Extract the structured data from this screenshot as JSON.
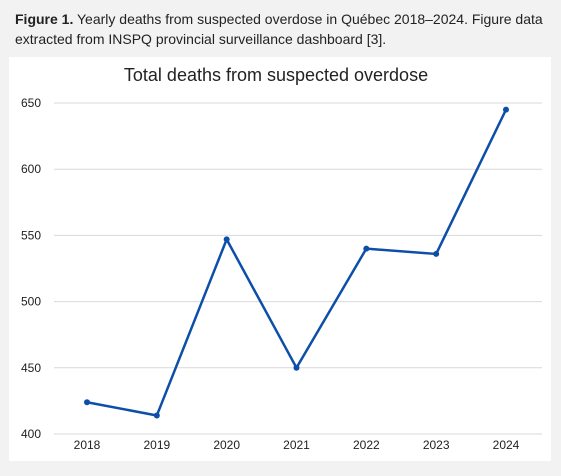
{
  "figure": {
    "label": "Figure 1.",
    "text": " Yearly deaths from suspected overdose in Québec 2018–2024. Figure data extracted from INSPQ provincial surveillance dashboard [3]."
  },
  "colors": {
    "line": "#0d4fa8",
    "grid": "#d9d9d9",
    "background": "#ffffff",
    "page": "#f2f2f2"
  },
  "chart_data": {
    "type": "line",
    "title": "Total deaths from suspected overdose",
    "xlabel": "",
    "ylabel": "",
    "categories": [
      "2018",
      "2019",
      "2020",
      "2021",
      "2022",
      "2023",
      "2024"
    ],
    "series": [
      {
        "values": [
          424,
          414,
          547,
          450,
          540,
          536,
          645
        ]
      }
    ],
    "ylim": [
      400,
      650
    ],
    "yticks": [
      400,
      450,
      500,
      550,
      600,
      650
    ],
    "grid": true,
    "legend": "none"
  }
}
